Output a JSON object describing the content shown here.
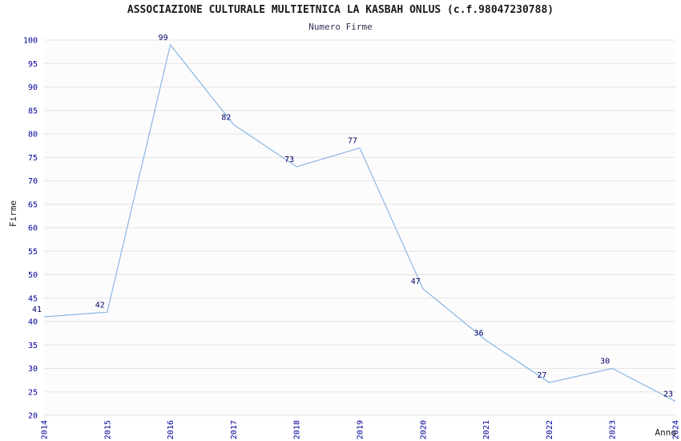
{
  "header": {
    "title": "ASSOCIAZIONE CULTURALE MULTIETNICA LA KASBAH ONLUS (c.f.98047230788)",
    "subtitle": "Numero Firme"
  },
  "chart_data": {
    "type": "line",
    "title": "ASSOCIAZIONE CULTURALE MULTIETNICA LA KASBAH ONLUS (c.f.98047230788)",
    "subtitle": "Numero Firme",
    "xlabel": "Anno",
    "ylabel": "Firme",
    "categories": [
      "2014",
      "2015",
      "2016",
      "2017",
      "2018",
      "2019",
      "2020",
      "2021",
      "2022",
      "2023",
      "2024"
    ],
    "values": [
      41,
      42,
      99,
      82,
      73,
      77,
      47,
      36,
      27,
      30,
      23
    ],
    "ylim": [
      20,
      100
    ],
    "ytick_step": 5,
    "grid": true,
    "legend": "none",
    "line_color": "#8ab6e4",
    "tick_label_color": "#000099",
    "point_label_color": "#000066",
    "grid_color": "#e4e4e4",
    "plot_bg": "#fcfcfc"
  }
}
